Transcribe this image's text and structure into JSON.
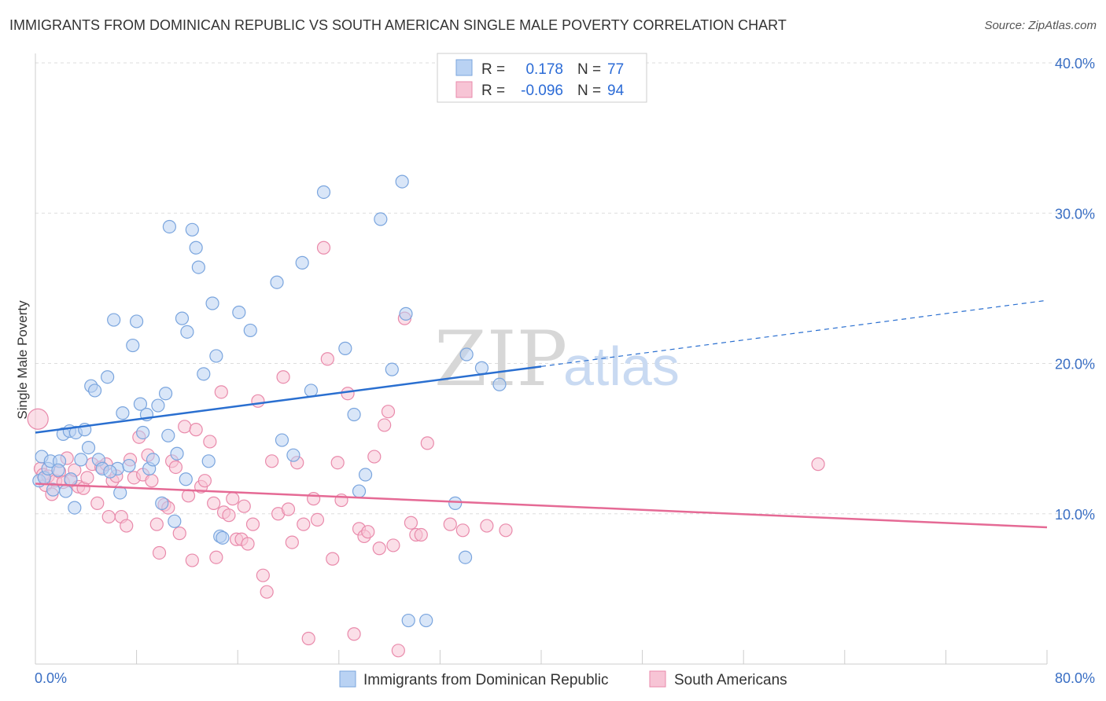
{
  "title": "IMMIGRANTS FROM DOMINICAN REPUBLIC VS SOUTH AMERICAN SINGLE MALE POVERTY CORRELATION CHART",
  "source": "Source: ZipAtlas.com",
  "watermark": {
    "zip": "ZIP",
    "atlas": "atlas"
  },
  "colors": {
    "blue_fill": "#b9d2f3",
    "blue_stroke": "#7aa5de",
    "blue_line": "#2a6fd0",
    "pink_fill": "#f7c4d5",
    "pink_stroke": "#e98aab",
    "pink_line": "#e56a95",
    "grid": "#dddddd",
    "tick_text": "#3a6fc4"
  },
  "legend": {
    "rows": [
      {
        "r_label": "R =",
        "r_value": "0.178",
        "n_label": "N =",
        "n_value": "77",
        "series": "blue"
      },
      {
        "r_label": "R =",
        "r_value": "-0.096",
        "n_label": "N =",
        "n_value": "94",
        "series": "pink"
      }
    ]
  },
  "chart_data": {
    "type": "scatter",
    "title": "IMMIGRANTS FROM DOMINICAN REPUBLIC VS SOUTH AMERICAN SINGLE MALE POVERTY CORRELATION CHART",
    "xlabel": "",
    "ylabel": "Single Male Poverty",
    "xlim": [
      0,
      80
    ],
    "ylim": [
      0,
      40
    ],
    "x_tick_labels": [
      "0.0%",
      "80.0%"
    ],
    "y_ticks": [
      10,
      20,
      30,
      40
    ],
    "y_tick_labels": [
      "10.0%",
      "20.0%",
      "30.0%",
      "40.0%"
    ],
    "grid": true,
    "legend_placement": "top-center",
    "series": [
      {
        "name": "Immigrants from Dominican Republic",
        "color": "#b9d2f3",
        "trend": {
          "x": [
            0,
            40
          ],
          "y": [
            15.4,
            19.8
          ],
          "extended_to": [
            80,
            24.2
          ]
        },
        "points": [
          [
            0.3,
            12.2
          ],
          [
            0.5,
            13.8
          ],
          [
            0.7,
            12.4
          ],
          [
            1.0,
            13.0
          ],
          [
            1.2,
            13.5
          ],
          [
            1.4,
            11.6
          ],
          [
            1.9,
            13.5
          ],
          [
            2.2,
            15.3
          ],
          [
            2.4,
            11.5
          ],
          [
            2.7,
            15.5
          ],
          [
            3.1,
            10.4
          ],
          [
            3.2,
            15.4
          ],
          [
            3.6,
            13.6
          ],
          [
            3.9,
            15.6
          ],
          [
            4.2,
            14.4
          ],
          [
            4.4,
            18.5
          ],
          [
            4.7,
            18.2
          ],
          [
            5.0,
            13.6
          ],
          [
            5.3,
            13.0
          ],
          [
            5.7,
            19.1
          ],
          [
            6.2,
            22.9
          ],
          [
            6.5,
            13.0
          ],
          [
            6.7,
            11.4
          ],
          [
            6.9,
            16.7
          ],
          [
            7.4,
            13.2
          ],
          [
            7.7,
            21.2
          ],
          [
            8.0,
            22.8
          ],
          [
            8.3,
            17.3
          ],
          [
            8.5,
            15.4
          ],
          [
            8.8,
            16.6
          ],
          [
            9.0,
            13.0
          ],
          [
            9.3,
            13.6
          ],
          [
            9.7,
            17.2
          ],
          [
            10.0,
            10.7
          ],
          [
            10.3,
            18.0
          ],
          [
            10.5,
            15.2
          ],
          [
            10.6,
            29.1
          ],
          [
            11.0,
            9.5
          ],
          [
            11.2,
            14.0
          ],
          [
            11.6,
            23.0
          ],
          [
            12.0,
            22.1
          ],
          [
            12.4,
            28.9
          ],
          [
            12.7,
            27.7
          ],
          [
            12.9,
            26.4
          ],
          [
            13.3,
            19.3
          ],
          [
            13.7,
            13.5
          ],
          [
            14.0,
            24.0
          ],
          [
            14.3,
            20.5
          ],
          [
            14.6,
            8.5
          ],
          [
            14.8,
            8.4
          ],
          [
            16.1,
            23.4
          ],
          [
            17.0,
            22.2
          ],
          [
            19.1,
            25.4
          ],
          [
            19.5,
            14.9
          ],
          [
            20.4,
            13.9
          ],
          [
            21.1,
            26.7
          ],
          [
            21.8,
            18.2
          ],
          [
            22.8,
            31.4
          ],
          [
            24.5,
            21.0
          ],
          [
            25.2,
            16.6
          ],
          [
            25.6,
            11.5
          ],
          [
            26.1,
            12.6
          ],
          [
            27.3,
            29.6
          ],
          [
            28.2,
            19.6
          ],
          [
            29.0,
            32.1
          ],
          [
            29.3,
            23.3
          ],
          [
            29.5,
            2.9
          ],
          [
            30.9,
            2.9
          ],
          [
            33.2,
            10.7
          ],
          [
            34.0,
            7.1
          ],
          [
            34.1,
            20.6
          ],
          [
            35.3,
            19.7
          ],
          [
            36.7,
            18.6
          ],
          [
            1.8,
            12.9
          ],
          [
            2.8,
            12.3
          ],
          [
            5.9,
            12.8
          ],
          [
            11.9,
            12.3
          ]
        ]
      },
      {
        "name": "South Americans",
        "color": "#f7c4d5",
        "trend": {
          "x": [
            0,
            80
          ],
          "y": [
            12.0,
            9.1
          ]
        },
        "points": [
          [
            0.2,
            16.3
          ],
          [
            0.4,
            13.0
          ],
          [
            0.6,
            12.6
          ],
          [
            0.8,
            11.9
          ],
          [
            1.0,
            12.5
          ],
          [
            1.3,
            11.3
          ],
          [
            1.6,
            12.2
          ],
          [
            1.9,
            12.8
          ],
          [
            2.2,
            12.1
          ],
          [
            2.5,
            13.7
          ],
          [
            2.8,
            12.2
          ],
          [
            3.1,
            12.9
          ],
          [
            3.4,
            11.8
          ],
          [
            3.8,
            11.7
          ],
          [
            4.1,
            12.4
          ],
          [
            4.5,
            13.3
          ],
          [
            4.9,
            10.7
          ],
          [
            5.2,
            13.1
          ],
          [
            5.6,
            13.3
          ],
          [
            5.8,
            9.8
          ],
          [
            6.1,
            12.2
          ],
          [
            6.4,
            12.5
          ],
          [
            6.8,
            9.8
          ],
          [
            7.2,
            9.2
          ],
          [
            7.5,
            13.6
          ],
          [
            7.8,
            12.4
          ],
          [
            8.2,
            15.1
          ],
          [
            8.5,
            12.6
          ],
          [
            8.9,
            13.9
          ],
          [
            9.2,
            12.2
          ],
          [
            9.6,
            9.3
          ],
          [
            9.8,
            7.4
          ],
          [
            10.2,
            10.6
          ],
          [
            10.5,
            10.4
          ],
          [
            10.8,
            13.5
          ],
          [
            11.1,
            13.1
          ],
          [
            11.4,
            8.7
          ],
          [
            11.8,
            15.8
          ],
          [
            12.1,
            11.2
          ],
          [
            12.4,
            6.9
          ],
          [
            12.7,
            15.6
          ],
          [
            13.1,
            11.8
          ],
          [
            13.4,
            12.2
          ],
          [
            13.8,
            14.8
          ],
          [
            14.1,
            10.7
          ],
          [
            14.3,
            7.1
          ],
          [
            14.7,
            18.1
          ],
          [
            14.9,
            10.1
          ],
          [
            15.3,
            9.9
          ],
          [
            15.6,
            11.0
          ],
          [
            15.9,
            8.3
          ],
          [
            16.3,
            8.3
          ],
          [
            16.5,
            10.5
          ],
          [
            16.8,
            8.0
          ],
          [
            17.2,
            9.3
          ],
          [
            17.6,
            17.5
          ],
          [
            18.0,
            5.9
          ],
          [
            18.3,
            4.8
          ],
          [
            18.7,
            13.5
          ],
          [
            19.2,
            10.0
          ],
          [
            19.6,
            19.1
          ],
          [
            20.0,
            10.3
          ],
          [
            20.3,
            8.1
          ],
          [
            20.7,
            13.4
          ],
          [
            21.2,
            9.3
          ],
          [
            21.6,
            1.7
          ],
          [
            22.0,
            11.0
          ],
          [
            22.3,
            9.6
          ],
          [
            22.8,
            27.7
          ],
          [
            23.1,
            20.3
          ],
          [
            23.5,
            7.0
          ],
          [
            23.9,
            13.4
          ],
          [
            24.2,
            10.9
          ],
          [
            24.7,
            18.0
          ],
          [
            25.2,
            2.0
          ],
          [
            25.6,
            9.0
          ],
          [
            26.0,
            8.5
          ],
          [
            26.3,
            8.8
          ],
          [
            26.8,
            13.8
          ],
          [
            27.2,
            7.7
          ],
          [
            27.6,
            15.9
          ],
          [
            27.9,
            16.8
          ],
          [
            28.3,
            7.9
          ],
          [
            28.7,
            0.9
          ],
          [
            29.2,
            23.0
          ],
          [
            29.7,
            9.4
          ],
          [
            30.1,
            8.6
          ],
          [
            30.5,
            8.6
          ],
          [
            31.0,
            14.7
          ],
          [
            32.8,
            9.3
          ],
          [
            33.8,
            8.9
          ],
          [
            35.7,
            9.2
          ],
          [
            37.2,
            8.9
          ],
          [
            61.9,
            13.3
          ]
        ]
      }
    ]
  },
  "bottom_legend": [
    {
      "label": "Immigrants from Dominican Republic",
      "series": "blue"
    },
    {
      "label": "South Americans",
      "series": "pink"
    }
  ]
}
